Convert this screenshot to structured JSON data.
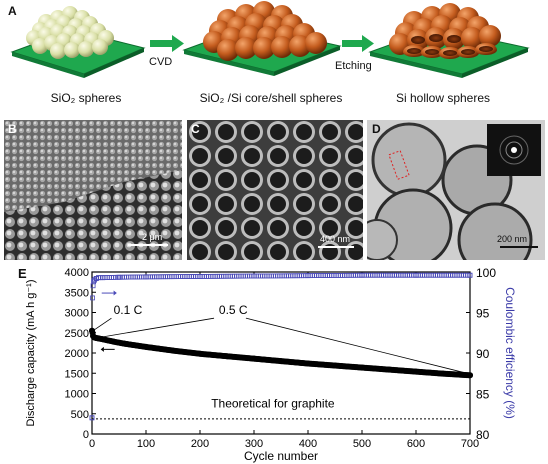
{
  "panelA": {
    "letter": "A",
    "captions": [
      "SiO₂ spheres",
      "SiO₂ /Si core/shell spheres",
      "Si hollow spheres"
    ],
    "arrow1_label": "CVD",
    "arrow2_label": "Etching"
  },
  "panelB": {
    "letter": "B",
    "scale": "2 μm"
  },
  "panelC": {
    "letter": "C",
    "scale": "400 nm"
  },
  "panelD": {
    "letter": "D",
    "scale": "200 nm"
  },
  "panelE": {
    "letter": "E"
  },
  "chart_data": {
    "type": "scatter",
    "xlabel": "Cycle number",
    "ylabel_left": "Discharge capacity (mA h g⁻¹)",
    "ylabel_right": "Coulombic efficiency (%)",
    "xlim": [
      0,
      700
    ],
    "ylim_left": [
      0,
      4000
    ],
    "ylim_right": [
      80,
      100
    ],
    "x_ticks": [
      0,
      100,
      200,
      300,
      400,
      500,
      600,
      700
    ],
    "y_ticks_left": [
      0,
      500,
      1000,
      1500,
      2000,
      2500,
      3000,
      3500,
      4000
    ],
    "y_ticks_right": [
      80,
      85,
      90,
      95,
      100
    ],
    "annotations": [
      "0.1 C",
      "0.5 C",
      "Theoretical for graphite"
    ],
    "reference_line_y": 372,
    "series": [
      {
        "axis": "left",
        "x": [
          0,
          1,
          2,
          3,
          5,
          8,
          12,
          20,
          40,
          60,
          100,
          150,
          200,
          250,
          300,
          350,
          400,
          450,
          500,
          550,
          600,
          650,
          700
        ],
        "values": [
          2550,
          2500,
          2420,
          2400,
          2380,
          2370,
          2360,
          2340,
          2280,
          2230,
          2150,
          2060,
          1980,
          1920,
          1860,
          1800,
          1740,
          1690,
          1640,
          1590,
          1540,
          1490,
          1450
        ]
      },
      {
        "axis": "right",
        "x": [
          0,
          1,
          2,
          3,
          5,
          8,
          12,
          20,
          50,
          100,
          200,
          300,
          400,
          500,
          600,
          700
        ],
        "values": [
          82,
          96.8,
          98.3,
          98.8,
          99.1,
          99.2,
          99.3,
          99.3,
          99.35,
          99.4,
          99.45,
          99.5,
          99.55,
          99.6,
          99.6,
          99.6
        ]
      }
    ]
  }
}
